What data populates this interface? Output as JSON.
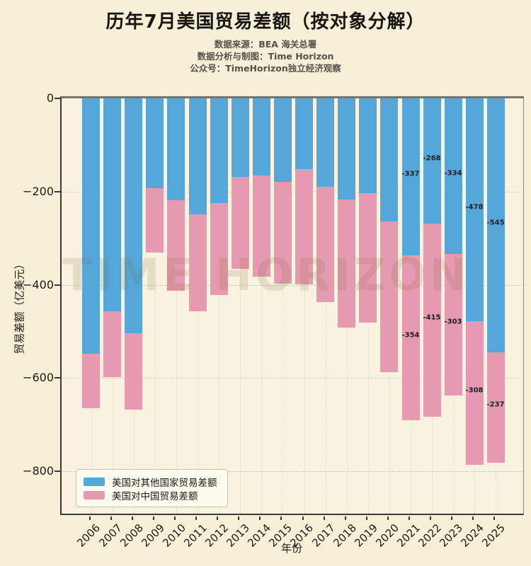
{
  "header": {
    "title": "历年7月美国贸易差额（按对象分解）",
    "subtitle_lines": [
      "数据来源：BEA 海关总署",
      "数据分析与制图：Time Horizon",
      "公众号：TimeHorizon独立经济观察"
    ]
  },
  "watermark": "TIME HORIZON",
  "colors": {
    "background": "#f7efd7",
    "plot_background": "#f9f2df",
    "other_series": "#55a7d9",
    "china_series": "#e69ab1",
    "spine": "#3c3a34",
    "text": "#1c1a14",
    "subtitle_text": "#56524a",
    "legend_background": "#fdfaee"
  },
  "chart_data": {
    "type": "bar",
    "stacked": true,
    "title": "历年7月美国贸易差额（按对象分解）",
    "xlabel": "年份",
    "ylabel": "贸易差额（亿美元）",
    "categories": [
      "2006",
      "2007",
      "2008",
      "2009",
      "2010",
      "2011",
      "2012",
      "2013",
      "2014",
      "2015",
      "2016",
      "2017",
      "2018",
      "2019",
      "2020",
      "2021",
      "2022",
      "2023",
      "2024",
      "2025"
    ],
    "series": [
      {
        "name": "美国对其他国家贸易差额",
        "color": "#55a7d9",
        "values": [
          -548,
          -457,
          -504,
          -193,
          -219,
          -249,
          -225,
          -168,
          -165,
          -179,
          -152,
          -190,
          -217,
          -203,
          -264,
          -337,
          -268,
          -334,
          -478,
          -545
        ]
      },
      {
        "name": "美国对中国贸易差额",
        "color": "#e69ab1",
        "values": [
          -117,
          -141,
          -164,
          -138,
          -195,
          -208,
          -197,
          -197,
          -217,
          -219,
          -248,
          -247,
          -275,
          -278,
          -323,
          -354,
          -415,
          -303,
          -308,
          -237
        ]
      }
    ],
    "annotated_categories": [
      "2021",
      "2022",
      "2023",
      "2024",
      "2025"
    ],
    "annotations": {
      "2021": [
        -337,
        -354
      ],
      "2022": [
        -268,
        -415
      ],
      "2023": [
        -334,
        -303
      ],
      "2024": [
        -478,
        -308
      ],
      "2025": [
        -545,
        -237
      ]
    },
    "ylim": [
      -894,
      0
    ],
    "yticks": {
      "values": [
        0,
        -200,
        -400,
        -600,
        -800
      ],
      "labels": [
        "0",
        "−200",
        "−400",
        "−600",
        "−800"
      ]
    },
    "grid": "dotted-faint-horizontal-and-vertical",
    "legend_position": "lower left",
    "bar_label_position": "segment center"
  },
  "legend": {
    "items": [
      {
        "label": "美国对其他国家贸易差额",
        "color": "#55a7d9"
      },
      {
        "label": "美国对中国贸易差额",
        "color": "#e69ab1"
      }
    ]
  }
}
